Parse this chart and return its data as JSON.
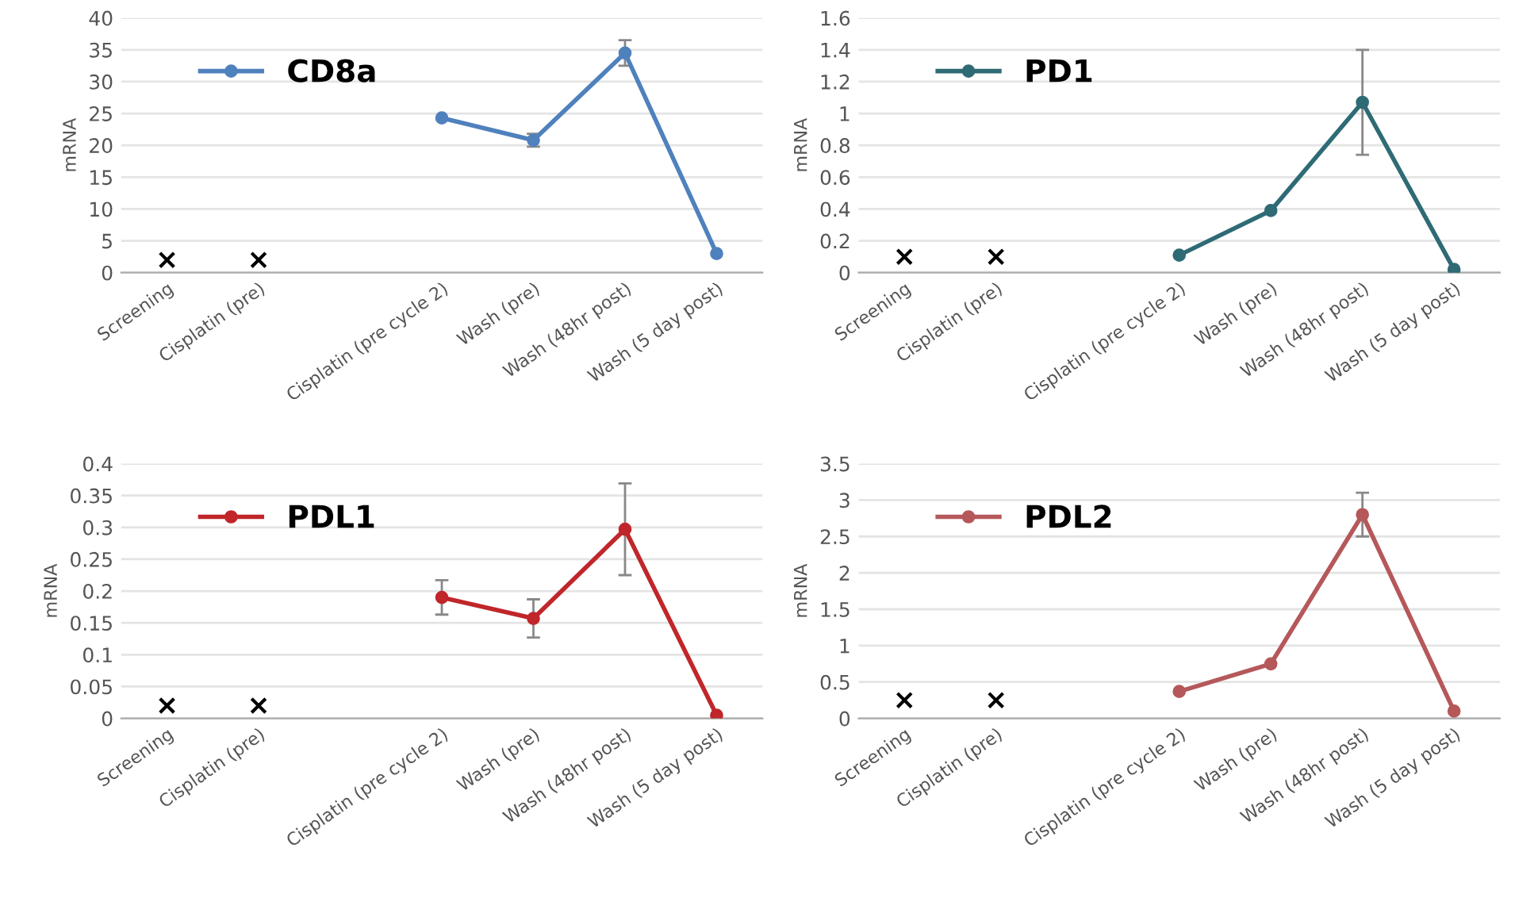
{
  "chart_data": [
    {
      "type": "line",
      "ylabel": "mRNA",
      "categories": [
        "Screening",
        "Cisplatin (pre)",
        null,
        "Cisplatin (pre cycle 2)",
        "Wash (pre)",
        "Wash (48hr post)",
        "Wash (5 day post)"
      ],
      "ylim": [
        0,
        40
      ],
      "yticks": [
        0,
        5,
        10,
        15,
        20,
        25,
        30,
        35,
        40
      ],
      "grid": "y",
      "legend": "top left",
      "marker": "circle",
      "series": [
        {
          "name": "CD8a",
          "color": "#4f81bd",
          "values": [
            null,
            null,
            null,
            24.3,
            20.8,
            34.5,
            3
          ],
          "errors": [
            null,
            null,
            null,
            null,
            1,
            2,
            null
          ]
        },
        {
          "type": "scatter",
          "marker": "cross",
          "color": "#000000",
          "values": [
            2,
            2,
            null,
            null,
            null,
            null,
            null
          ]
        }
      ]
    },
    {
      "type": "line",
      "ylabel": "mRNA",
      "categories": [
        "Screening",
        "Cisplatin (pre)",
        null,
        "Cisplatin (pre cycle 2)",
        "Wash (pre)",
        "Wash (48hr post)",
        "Wash (5 day post)"
      ],
      "ylim": [
        0,
        1.6
      ],
      "yticks": [
        0,
        0.2,
        0.4,
        0.6,
        0.8,
        1,
        1.2,
        1.4,
        1.6
      ],
      "grid": "y",
      "legend": "top left",
      "marker": "circle",
      "series": [
        {
          "name": "PD1",
          "color": "#2e6b75",
          "values": [
            null,
            null,
            null,
            0.11,
            0.39,
            1.07,
            0.02
          ],
          "errors": [
            null,
            null,
            null,
            null,
            null,
            0.33,
            null
          ]
        },
        {
          "type": "scatter",
          "marker": "cross",
          "color": "#000000",
          "values": [
            0.1,
            0.1,
            null,
            null,
            null,
            null,
            null
          ]
        }
      ]
    },
    {
      "type": "line",
      "ylabel": "mRNA",
      "categories": [
        "Screening",
        "Cisplatin (pre)",
        null,
        "Cisplatin (pre cycle 2)",
        "Wash (pre)",
        "Wash (48hr post)",
        "Wash (5 day post)"
      ],
      "ylim": [
        0,
        0.4
      ],
      "yticks": [
        0,
        0.05,
        0.1,
        0.15,
        0.2,
        0.25,
        0.3,
        0.35,
        0.4
      ],
      "grid": "y",
      "legend": "top left",
      "marker": "circle",
      "series": [
        {
          "name": "PDL1",
          "color": "#c0262a",
          "values": [
            null,
            null,
            null,
            0.19,
            0.157,
            0.297,
            0.005
          ],
          "errors": [
            null,
            null,
            null,
            0.027,
            0.03,
            0.072,
            null
          ]
        },
        {
          "type": "scatter",
          "marker": "cross",
          "color": "#000000",
          "values": [
            0.02,
            0.02,
            null,
            null,
            null,
            null,
            null
          ]
        }
      ]
    },
    {
      "type": "line",
      "ylabel": "mRNA",
      "categories": [
        "Screening",
        "Cisplatin (pre)",
        null,
        "Cisplatin (pre cycle 2)",
        "Wash (pre)",
        "Wash (48hr post)",
        "Wash (5 day post)"
      ],
      "ylim": [
        0,
        3.5
      ],
      "yticks": [
        0,
        0.5,
        1,
        1.5,
        2,
        2.5,
        3,
        3.5
      ],
      "grid": "y",
      "legend": "top left",
      "marker": "circle",
      "series": [
        {
          "name": "PDL2",
          "color": "#b5585a",
          "values": [
            null,
            null,
            null,
            0.37,
            0.75,
            2.8,
            0.1
          ],
          "errors": [
            null,
            null,
            null,
            null,
            null,
            0.3,
            null
          ]
        },
        {
          "type": "scatter",
          "marker": "cross",
          "color": "#000000",
          "values": [
            0.25,
            0.25,
            null,
            null,
            null,
            null,
            null
          ]
        }
      ]
    }
  ]
}
